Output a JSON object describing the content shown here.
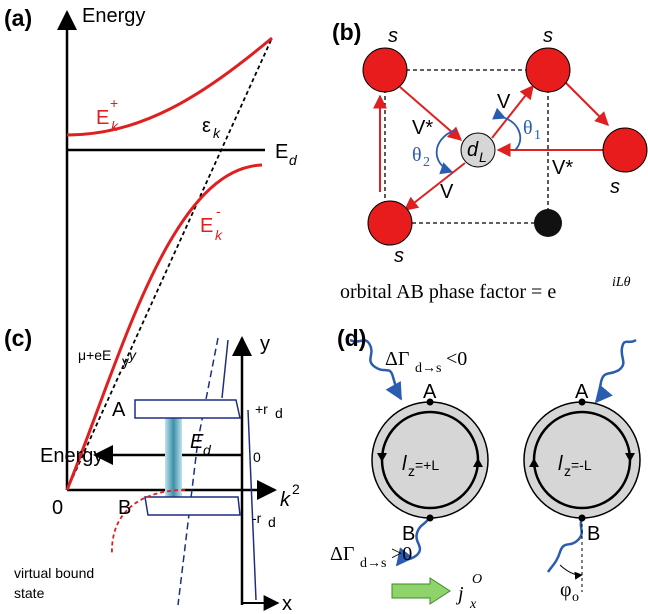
{
  "panel_a": {
    "label": "(a)",
    "y_axis": "Energy",
    "upper_band": {
      "main": "E",
      "sup": "+",
      "sub": "k"
    },
    "dispersion": {
      "main": "ε",
      "sub": "k"
    },
    "level": {
      "main": "E",
      "sub": "d"
    },
    "lower_band": {
      "main": "E",
      "sup": "-",
      "sub": "k"
    },
    "origin": "0",
    "x_axis": {
      "main": "k",
      "sup": "2"
    }
  },
  "panel_b": {
    "label": "(b)",
    "sites": [
      "s",
      "s",
      "s",
      "s"
    ],
    "hoppings": [
      "V*",
      "V",
      "V*",
      "V"
    ],
    "angles": [
      {
        "main": "θ",
        "sub": "2"
      },
      {
        "main": "θ",
        "sub": "1"
      }
    ],
    "impurity": {
      "main": "d",
      "sub": "L"
    },
    "caption": {
      "main": "orbital AB phase factor = e",
      "sup": "iLθ"
    }
  },
  "panel_c": {
    "label": "(c)",
    "chemical_potential": {
      "main": "μ+eE",
      "sub": "y",
      "tail": "y"
    },
    "y_axis": "y",
    "x_axis": "x",
    "upper_end": "A",
    "upper_position": {
      "main": "+r",
      "sub": "d"
    },
    "energy_axis": "Energy",
    "level": {
      "main": "E",
      "sub": "d"
    },
    "origin": "0",
    "lower_end": "B",
    "lower_position": {
      "main": "-r",
      "sub": "d"
    },
    "state_label": [
      "virtual bound",
      "state"
    ]
  },
  "panel_d": {
    "label": "(d)",
    "upper_rate": {
      "main": "ΔΓ",
      "sub": "d→s",
      "tail": "<0"
    },
    "lower_rate": {
      "main": "ΔΓ",
      "sub": "d→s",
      "tail": ">0"
    },
    "left_ring": {
      "top": "A",
      "bottom": "B",
      "main": "l",
      "sub": "z",
      "tail": "=+L"
    },
    "right_ring": {
      "top": "A",
      "bottom": "B",
      "main": "l",
      "sub": "z",
      "tail": "=-L"
    },
    "angle": {
      "main": "φ",
      "sub": "o"
    },
    "current": {
      "main": "j",
      "sub": "x",
      "sup": "O"
    }
  }
}
